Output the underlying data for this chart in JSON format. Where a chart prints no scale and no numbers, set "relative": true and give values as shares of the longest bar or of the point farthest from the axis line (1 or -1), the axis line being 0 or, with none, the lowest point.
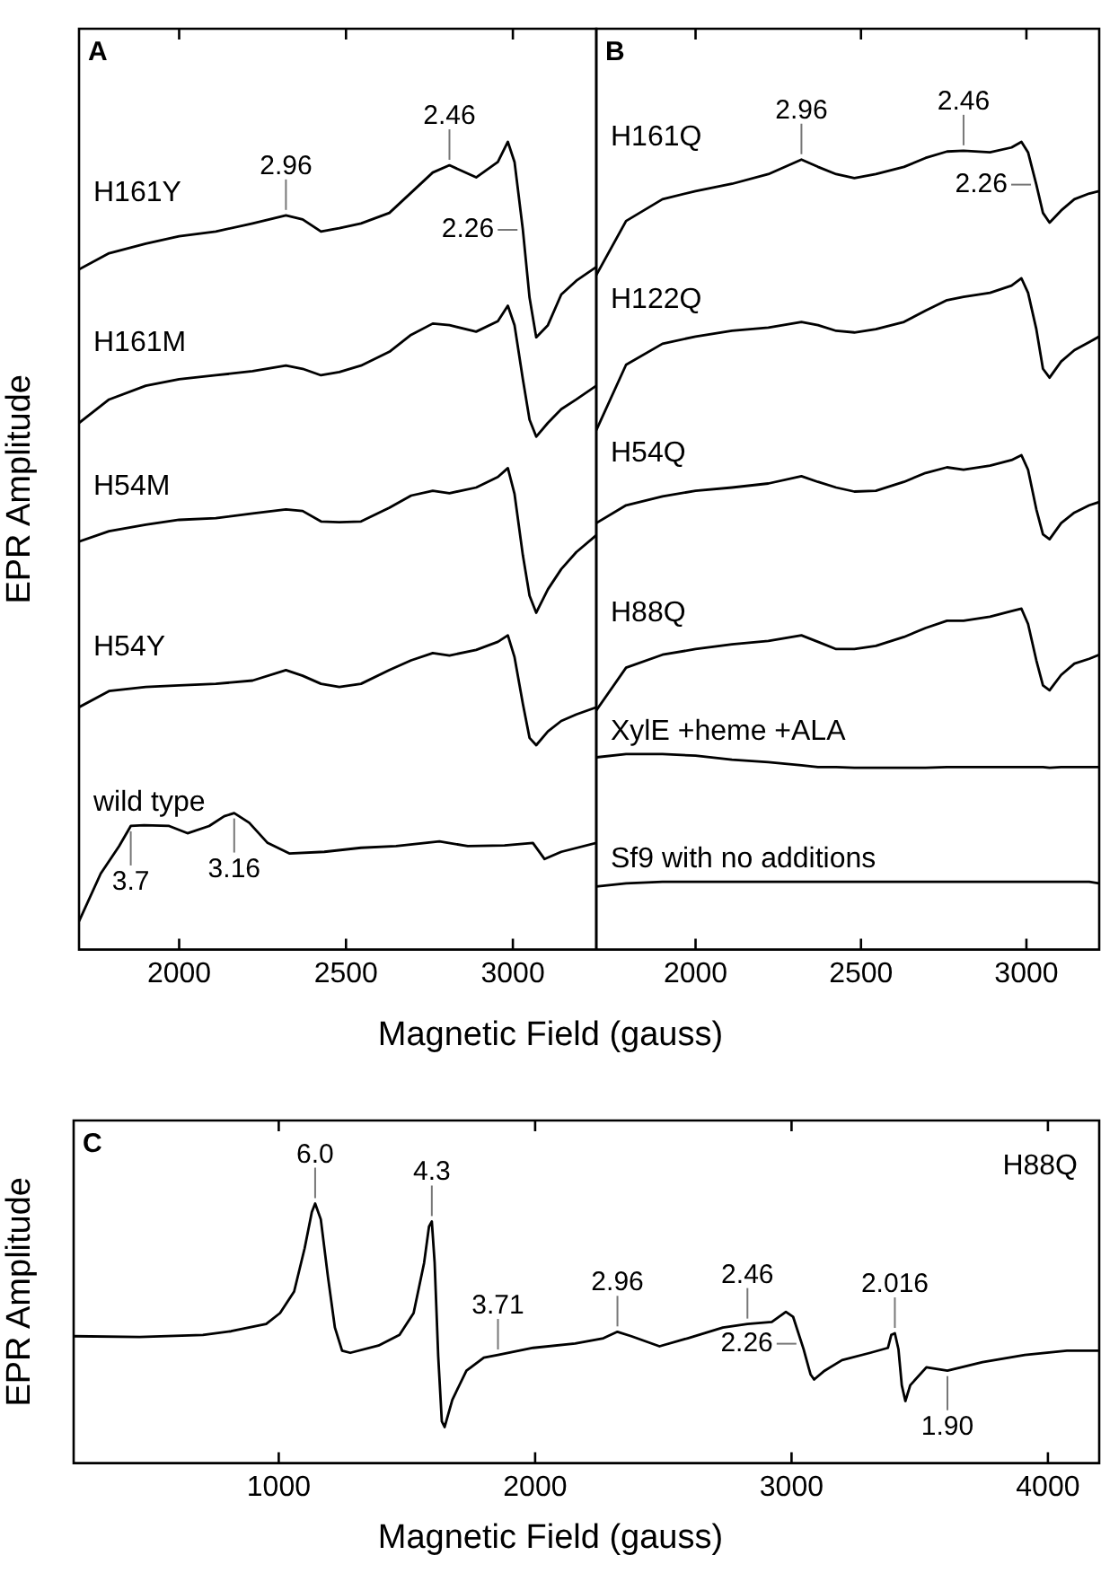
{
  "chart_data": [
    {
      "type": "line",
      "title": "A",
      "xlabel": "Magnetic Field (gauss)",
      "ylabel": "EPR Amplitude",
      "relative": true,
      "xlim": [
        1700,
        3250
      ],
      "xticks": [
        2000,
        2500,
        3000
      ],
      "x": [
        1700,
        1790,
        1900,
        2000,
        2110,
        2220,
        2320,
        2370,
        2425,
        2480,
        2545,
        2630,
        2695,
        2760,
        2810,
        2890,
        2955,
        2985,
        3005,
        3030,
        3050,
        3070,
        3105,
        3145,
        3190,
        3250
      ],
      "series": [
        {
          "name": "H161Y",
          "color": "#000000",
          "values": [
            0.842,
            0.862,
            0.874,
            0.883,
            0.889,
            0.899,
            0.909,
            0.904,
            0.889,
            0.893,
            0.899,
            0.912,
            0.937,
            0.962,
            0.971,
            0.956,
            0.975,
            1,
            0.975,
            0.891,
            0.807,
            0.758,
            0.773,
            0.811,
            0.828,
            0.845
          ]
        },
        {
          "name": "H161M",
          "color": "#000000",
          "values": [
            0.652,
            0.681,
            0.698,
            0.706,
            0.711,
            0.716,
            0.723,
            0.719,
            0.711,
            0.715,
            0.723,
            0.74,
            0.761,
            0.775,
            0.773,
            0.765,
            0.778,
            0.797,
            0.773,
            0.706,
            0.656,
            0.635,
            0.652,
            0.669,
            0.681,
            0.698
          ]
        },
        {
          "name": "H54M",
          "color": "#000000",
          "values": [
            0.505,
            0.518,
            0.526,
            0.532,
            0.534,
            0.54,
            0.545,
            0.543,
            0.53,
            0.529,
            0.53,
            0.547,
            0.562,
            0.568,
            0.565,
            0.572,
            0.585,
            0.596,
            0.564,
            0.488,
            0.438,
            0.417,
            0.446,
            0.471,
            0.492,
            0.513
          ]
        },
        {
          "name": "H54Y",
          "color": "#000000",
          "values": [
            0.3,
            0.32,
            0.325,
            0.327,
            0.329,
            0.333,
            0.346,
            0.339,
            0.329,
            0.325,
            0.329,
            0.346,
            0.358,
            0.367,
            0.364,
            0.371,
            0.381,
            0.389,
            0.362,
            0.304,
            0.262,
            0.253,
            0.27,
            0.283,
            0.291,
            0.3
          ]
        },
        {
          "name": "wild type",
          "color": "#000000",
          "x": [
            1700,
            1765,
            1820,
            1855,
            1895,
            1970,
            2025,
            2090,
            2135,
            2165,
            2210,
            2265,
            2330,
            2435,
            2545,
            2650,
            2780,
            2865,
            2975,
            3060,
            3095,
            3145,
            3250
          ],
          "values": [
            0.035,
            0.094,
            0.128,
            0.153,
            0.154,
            0.153,
            0.144,
            0.153,
            0.165,
            0.169,
            0.157,
            0.132,
            0.119,
            0.121,
            0.126,
            0.128,
            0.134,
            0.128,
            0.129,
            0.132,
            0.112,
            0.121,
            0.132
          ]
        }
      ],
      "annotations": [
        {
          "text": "2.96",
          "x": 2320,
          "y": 0.909
        },
        {
          "text": "2.46",
          "x": 2810,
          "y": 0.971
        },
        {
          "text": "2.26",
          "x": 3030,
          "y": 0.891
        },
        {
          "text": "3.7",
          "x": 1855,
          "y": 0.153
        },
        {
          "text": "3.16",
          "x": 2165,
          "y": 0.169
        }
      ]
    },
    {
      "type": "line",
      "title": "B",
      "relative": true,
      "xlim": [
        1700,
        3220
      ],
      "xticks": [
        2000,
        2500,
        3000
      ],
      "x": [
        1700,
        1790,
        1900,
        2000,
        2110,
        2220,
        2320,
        2370,
        2425,
        2480,
        2545,
        2630,
        2695,
        2760,
        2810,
        2890,
        2955,
        2985,
        3005,
        3030,
        3050,
        3070,
        3105,
        3145,
        3190,
        3220
      ],
      "series": [
        {
          "name": "H161Q",
          "color": "#000000",
          "values": [
            0.835,
            0.902,
            0.929,
            0.939,
            0.948,
            0.96,
            0.978,
            0.969,
            0.96,
            0.955,
            0.96,
            0.969,
            0.98,
            0.988,
            0.989,
            0.987,
            0.993,
            1,
            0.987,
            0.947,
            0.912,
            0.9,
            0.915,
            0.929,
            0.936,
            0.939
          ]
        },
        {
          "name": "H122Q",
          "color": "#000000",
          "values": [
            0.643,
            0.724,
            0.75,
            0.759,
            0.766,
            0.77,
            0.777,
            0.773,
            0.766,
            0.764,
            0.768,
            0.777,
            0.791,
            0.804,
            0.808,
            0.813,
            0.822,
            0.831,
            0.813,
            0.768,
            0.719,
            0.708,
            0.728,
            0.742,
            0.752,
            0.759
          ]
        },
        {
          "name": "H54Q",
          "color": "#000000",
          "values": [
            0.528,
            0.55,
            0.561,
            0.568,
            0.572,
            0.577,
            0.586,
            0.579,
            0.572,
            0.567,
            0.568,
            0.579,
            0.59,
            0.597,
            0.594,
            0.599,
            0.606,
            0.612,
            0.594,
            0.545,
            0.514,
            0.508,
            0.528,
            0.541,
            0.55,
            0.554
          ]
        },
        {
          "name": "H88Q",
          "color": "#000000",
          "values": [
            0.296,
            0.349,
            0.365,
            0.372,
            0.378,
            0.382,
            0.389,
            0.381,
            0.372,
            0.372,
            0.376,
            0.387,
            0.398,
            0.407,
            0.407,
            0.412,
            0.419,
            0.422,
            0.403,
            0.358,
            0.327,
            0.321,
            0.34,
            0.354,
            0.36,
            0.365
          ]
        },
        {
          "name": "XylE +heme +ALA",
          "color": "#000000",
          "values": [
            0.238,
            0.242,
            0.242,
            0.24,
            0.235,
            0.232,
            0.228,
            0.226,
            0.226,
            0.225,
            0.225,
            0.225,
            0.225,
            0.226,
            0.226,
            0.226,
            0.226,
            0.226,
            0.226,
            0.226,
            0.226,
            0.225,
            0.226,
            0.226,
            0.226,
            0.226
          ]
        },
        {
          "name": "Sf9 with no additions",
          "color": "#000000",
          "values": [
            0.078,
            0.082,
            0.084,
            0.084,
            0.084,
            0.084,
            0.084,
            0.084,
            0.084,
            0.084,
            0.084,
            0.084,
            0.084,
            0.084,
            0.084,
            0.084,
            0.084,
            0.084,
            0.084,
            0.084,
            0.084,
            0.084,
            0.084,
            0.084,
            0.084,
            0.082
          ]
        }
      ],
      "annotations": [
        {
          "text": "2.96",
          "x": 2320,
          "y": 0.978
        },
        {
          "text": "2.46",
          "x": 2810,
          "y": 0.989
        },
        {
          "text": "2.26",
          "x": 3030,
          "y": 0.947
        }
      ]
    },
    {
      "type": "line",
      "title": "C",
      "xlabel": "Magnetic Field (gauss)",
      "ylabel": "EPR Amplitude",
      "relative": true,
      "xlim": [
        200,
        4200
      ],
      "xticks": [
        1000,
        2000,
        3000,
        4000
      ],
      "x": [
        200,
        457,
        704,
        814,
        951,
        1005,
        1060,
        1101,
        1129,
        1142,
        1164,
        1192,
        1219,
        1247,
        1279,
        1389,
        1471,
        1526,
        1567,
        1586,
        1597,
        1608,
        1622,
        1636,
        1647,
        1677,
        1732,
        1800,
        1855,
        1992,
        2156,
        2266,
        2321,
        2375,
        2485,
        2595,
        2732,
        2828,
        2923,
        2978,
        3006,
        3047,
        3074,
        3088,
        3129,
        3197,
        3307,
        3376,
        3389,
        3403,
        3417,
        3430,
        3444,
        3463,
        3526,
        3608,
        3745,
        3910,
        4074,
        4200
      ],
      "series": [
        {
          "name": "H88Q",
          "color": "#000000",
          "values": [
            0.489,
            0.486,
            0.494,
            0.508,
            0.536,
            0.578,
            0.661,
            0.828,
            0.967,
            1,
            0.939,
            0.717,
            0.522,
            0.433,
            0.425,
            0.453,
            0.494,
            0.578,
            0.772,
            0.911,
            0.931,
            0.772,
            0.411,
            0.161,
            0.139,
            0.244,
            0.356,
            0.406,
            0.417,
            0.444,
            0.461,
            0.481,
            0.506,
            0.489,
            0.45,
            0.481,
            0.522,
            0.536,
            0.544,
            0.583,
            0.564,
            0.439,
            0.342,
            0.322,
            0.356,
            0.397,
            0.425,
            0.444,
            0.494,
            0.5,
            0.439,
            0.3,
            0.239,
            0.3,
            0.369,
            0.356,
            0.389,
            0.417,
            0.433,
            0.433
          ]
        }
      ],
      "annotations": [
        {
          "text": "6.0",
          "x": 1142,
          "y": 1
        },
        {
          "text": "4.3",
          "x": 1597,
          "y": 0.931
        },
        {
          "text": "3.71",
          "x": 1855,
          "y": 0.417
        },
        {
          "text": "2.96",
          "x": 2321,
          "y": 0.506
        },
        {
          "text": "2.46",
          "x": 2828,
          "y": 0.536
        },
        {
          "text": "2.26",
          "x": 3040,
          "y": 0.46
        },
        {
          "text": "2.016",
          "x": 3403,
          "y": 0.5
        },
        {
          "text": "1.90",
          "x": 3608,
          "y": 0.356
        }
      ]
    }
  ]
}
